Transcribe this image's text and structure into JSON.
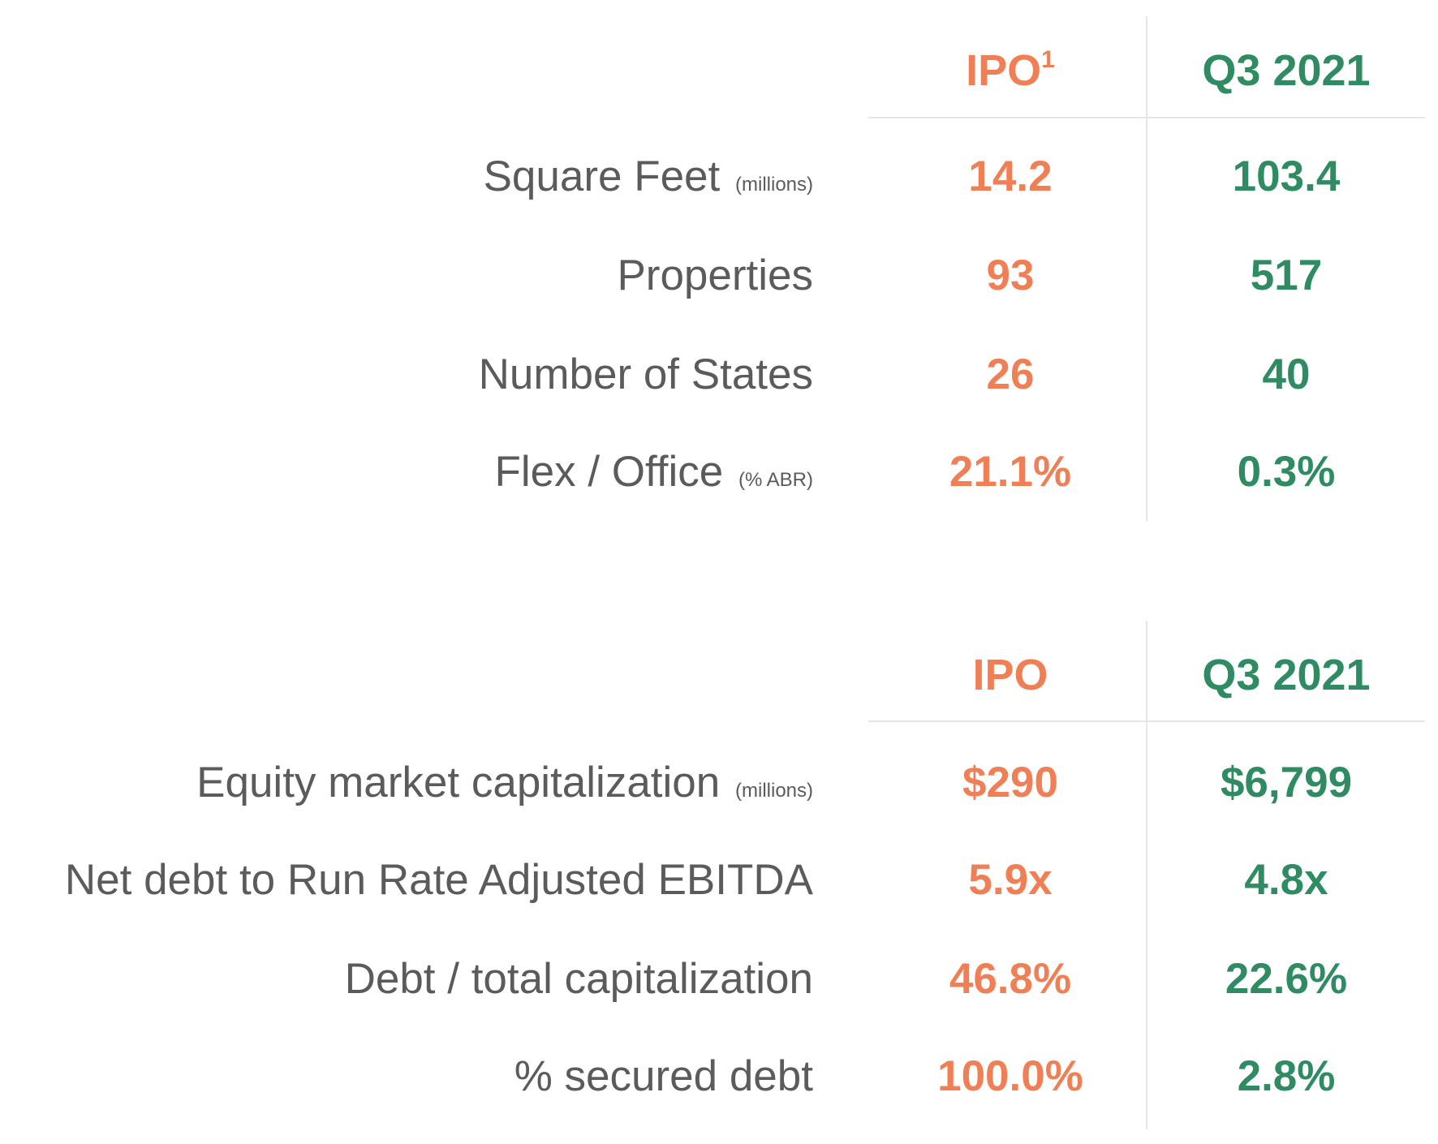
{
  "table_1": {
    "columns": {
      "ipo": "IPO",
      "ipo_sup": "1",
      "q3": "Q3 2021"
    },
    "rows": [
      {
        "label": "Square Feet",
        "unit": "(millions)",
        "ipo": "14.2",
        "q3": "103.4"
      },
      {
        "label": "Properties",
        "unit": "",
        "ipo": "93",
        "q3": "517"
      },
      {
        "label": "Number of States",
        "unit": "",
        "ipo": "26",
        "q3": "40"
      },
      {
        "label": "Flex / Office",
        "unit": "(% ABR)",
        "ipo": "21.1%",
        "q3": "0.3%"
      }
    ]
  },
  "table_2": {
    "columns": {
      "ipo": "IPO",
      "q3": "Q3 2021"
    },
    "rows": [
      {
        "label": "Equity market capitalization",
        "unit": "(millions)",
        "ipo": "$290",
        "q3": "$6,799"
      },
      {
        "label": "Net debt to Run Rate Adjusted EBITDA",
        "unit": "",
        "ipo": "5.9x",
        "q3": "4.8x"
      },
      {
        "label": "Debt / total capitalization",
        "unit": "",
        "ipo": "46.8%",
        "q3": "22.6%"
      },
      {
        "label": "% secured debt",
        "unit": "",
        "ipo": "100.0%",
        "q3": "2.8%"
      }
    ]
  },
  "colors": {
    "ipo": "#f07f55",
    "q3": "#2e8b62",
    "label": "#5b5b5b",
    "rule": "#e6e6e6"
  }
}
